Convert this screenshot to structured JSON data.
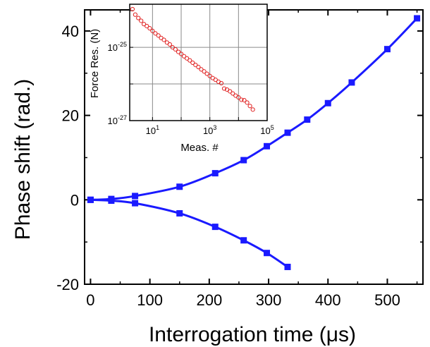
{
  "chart_data": [
    {
      "type": "line",
      "xlabel": "Interrogation time (μs)",
      "ylabel": "Phase shift (rad.)",
      "xlim": [
        -10,
        560
      ],
      "ylim": [
        -20,
        45
      ],
      "xticks": [
        0,
        100,
        200,
        300,
        400,
        500
      ],
      "xtick_labels": [
        "0",
        "100",
        "200",
        "300",
        "400",
        "500"
      ],
      "yticks": [
        -20,
        0,
        20,
        40
      ],
      "ytick_labels": [
        "-20",
        "0",
        "20",
        "40"
      ],
      "series_color": "#1a1aff",
      "series": [
        {
          "x": [
            0,
            35,
            75,
            150,
            210,
            258,
            297,
            332,
            365,
            400,
            440,
            500,
            550
          ],
          "y": [
            0,
            0.2,
            0.9,
            3.1,
            6.3,
            9.4,
            12.7,
            15.9,
            19.0,
            22.9,
            27.8,
            35.7,
            43.0
          ]
        },
        {
          "x": [
            0,
            35,
            75,
            150,
            210,
            258,
            297,
            332
          ],
          "y": [
            0,
            -0.2,
            -0.8,
            -3.2,
            -6.4,
            -9.6,
            -12.6,
            -15.9
          ]
        }
      ]
    },
    {
      "type": "scatter",
      "xlabel": "Meas. #",
      "ylabel": "Force Res. (N)",
      "xscale": "log",
      "yscale": "log",
      "xlim": [
        1.6,
        100000
      ],
      "ylim": [
        1e-27,
        1.5e-24
      ],
      "grid": true,
      "xtick_labels": [
        {
          "base": "10",
          "exp": "1",
          "value": 10
        },
        {
          "base": "10",
          "exp": "3",
          "value": 1000
        },
        {
          "base": "10",
          "exp": "5",
          "value": 100000
        }
      ],
      "ytick_labels": [
        {
          "base": "10",
          "exp": "-25",
          "value": 1e-25
        },
        {
          "base": "10",
          "exp": "-27",
          "value": 1e-27
        }
      ],
      "marker_color": "#e02020",
      "points": {
        "x": [
          2,
          2.5,
          3.2,
          4,
          5,
          6.3,
          8,
          10,
          12.6,
          16,
          20,
          25,
          32,
          40,
          50,
          63,
          80,
          100,
          126,
          158,
          200,
          251,
          316,
          398,
          501,
          631,
          794,
          1000,
          1259,
          1585,
          1995,
          2512,
          3162,
          3981,
          5012,
          6310,
          7943,
          10000,
          12589,
          15849,
          19953,
          25119,
          31623
        ],
        "y": [
          1.1e-24,
          7.8e-25,
          6.3e-25,
          5.3e-25,
          4.3e-25,
          3.8e-25,
          3.3e-25,
          2.8e-25,
          2.4e-25,
          2.1e-25,
          1.8e-25,
          1.6e-25,
          1.35e-25,
          1.2e-25,
          1e-25,
          8.8e-26,
          7.5e-26,
          6.6e-26,
          5.7e-26,
          5e-26,
          4.4e-26,
          3.8e-26,
          3.3e-26,
          2.9e-26,
          2.5e-26,
          2.2e-26,
          1.9e-26,
          1.65e-26,
          1.45e-26,
          1.3e-26,
          1.15e-26,
          1.05e-26,
          7.5e-27,
          7e-27,
          6.3e-27,
          5.5e-27,
          4.8e-27,
          4.3e-27,
          3.7e-27,
          3.6e-27,
          3.1e-27,
          2.5e-27,
          2e-27
        ]
      }
    }
  ]
}
